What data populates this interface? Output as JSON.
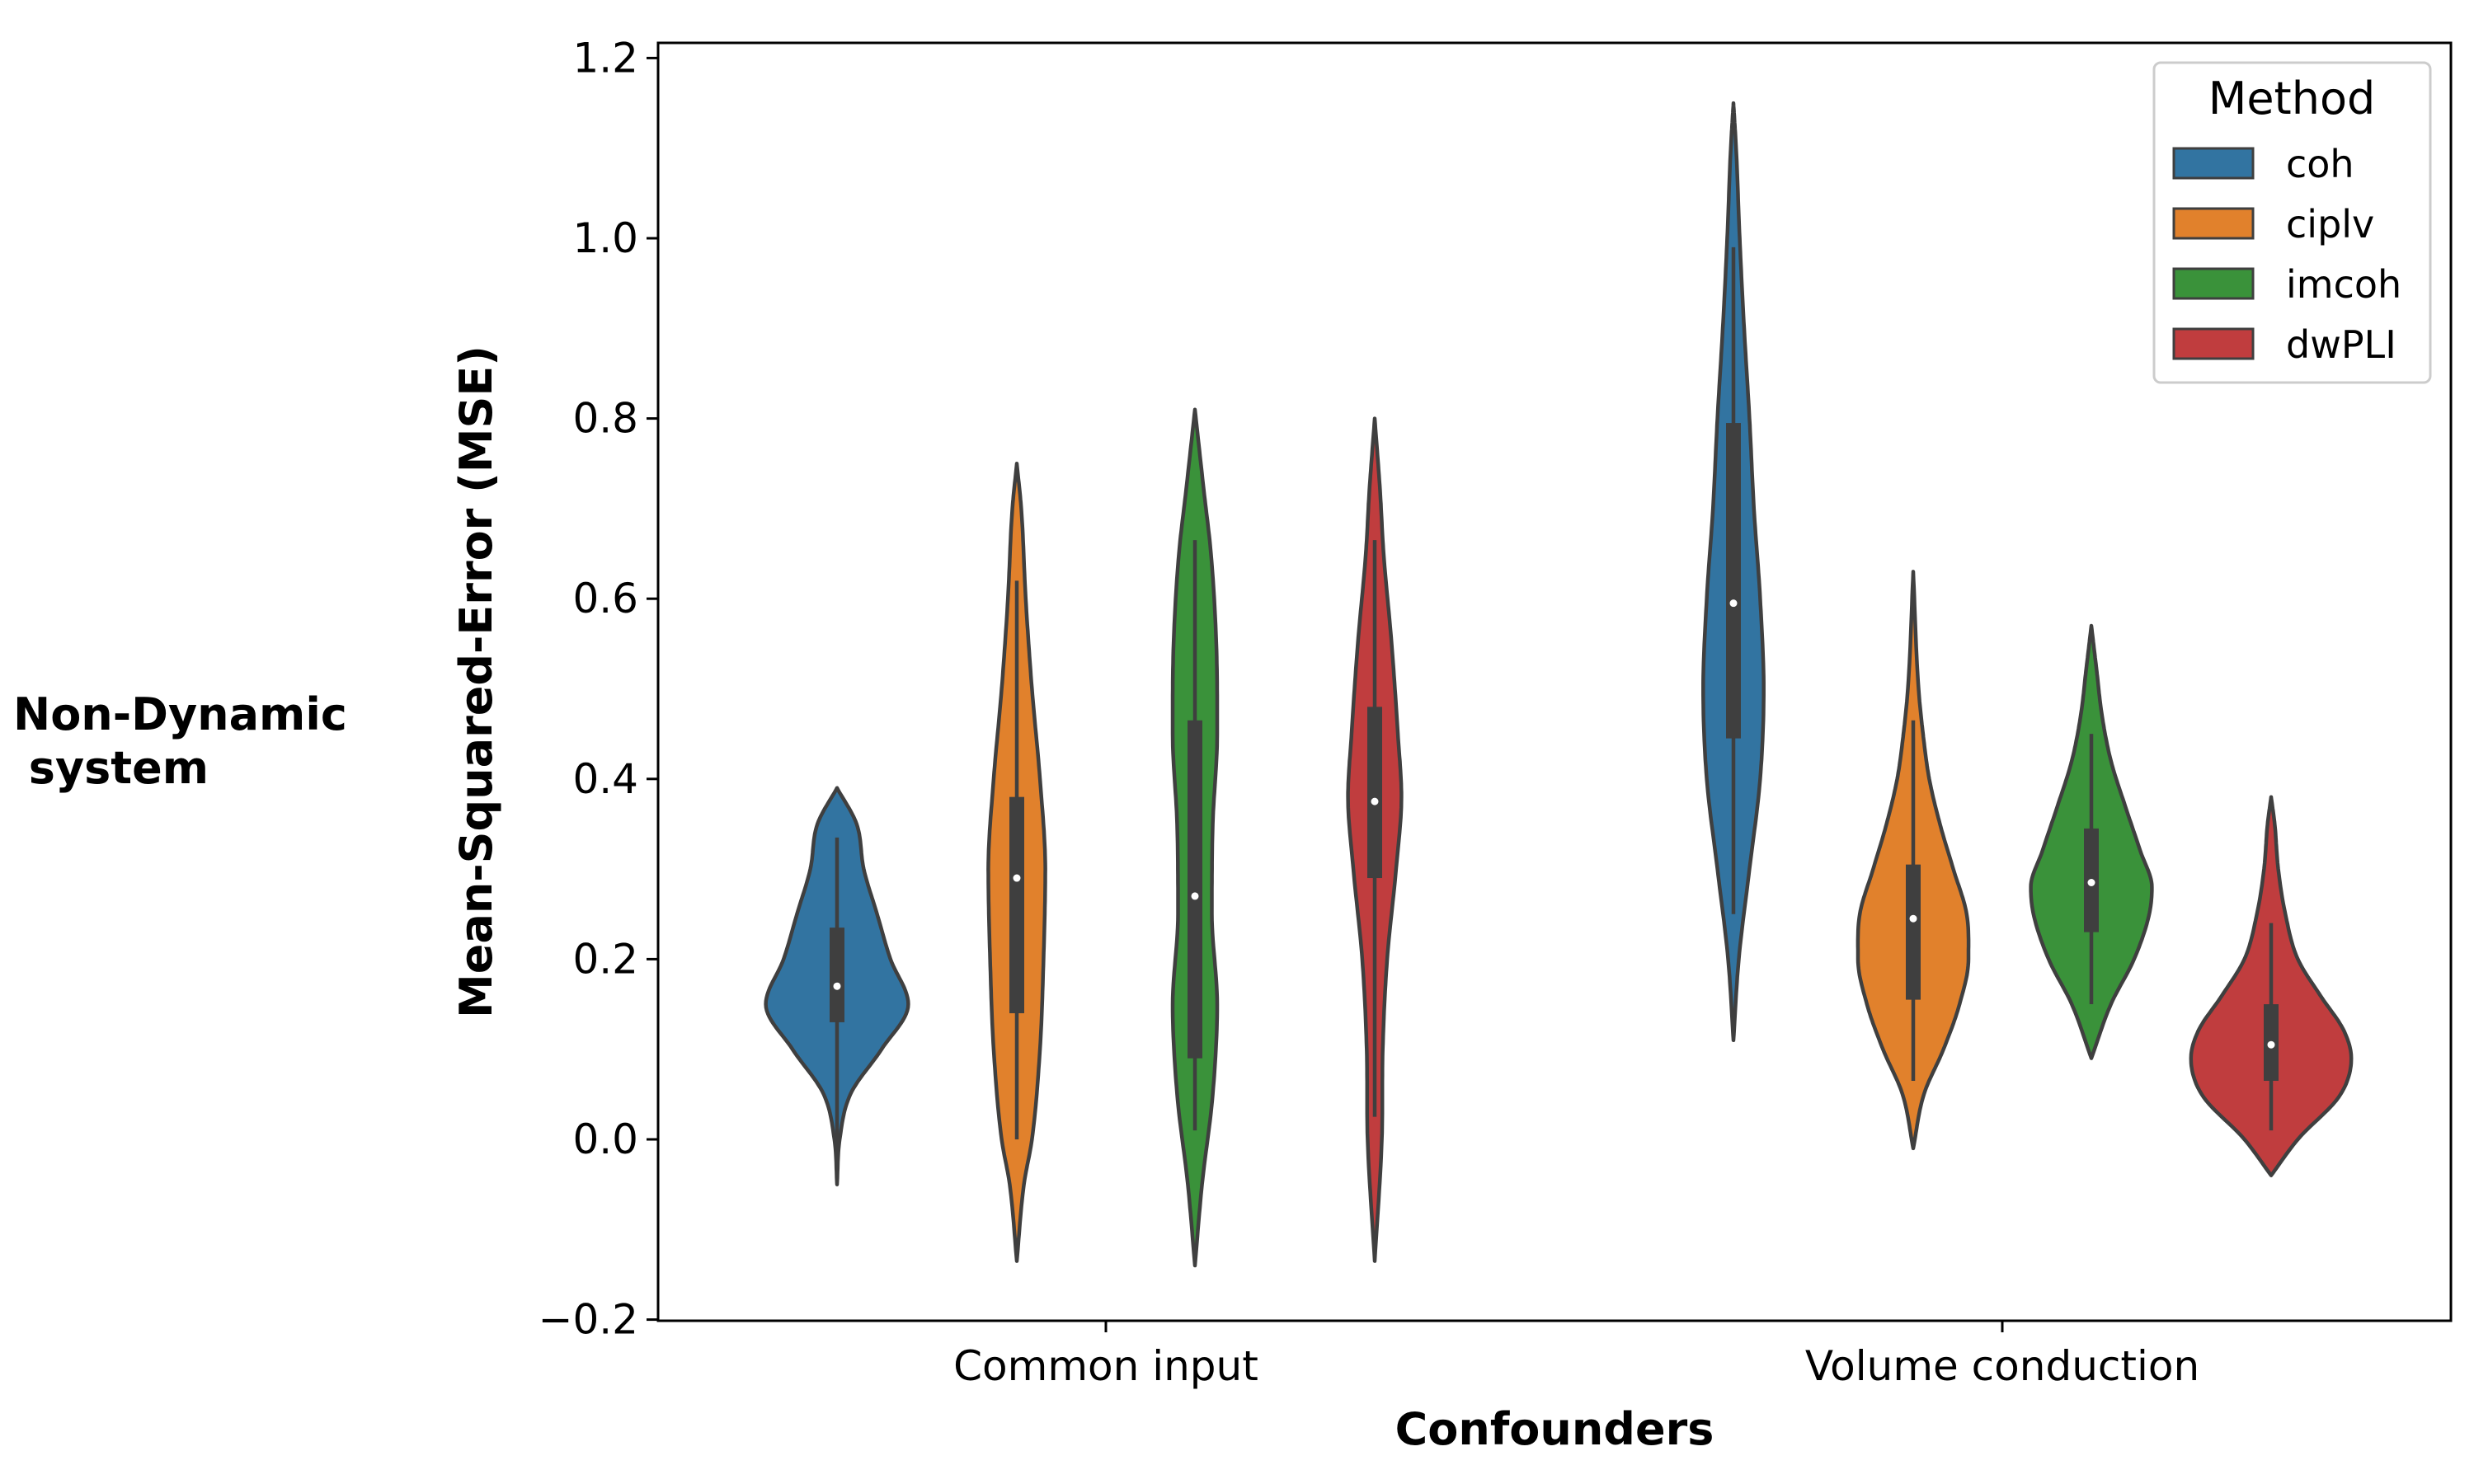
{
  "side_label": {
    "line1": "Non-Dynamic",
    "line2": " system"
  },
  "chart_data": {
    "type": "violin",
    "xlabel": "Confounders",
    "ylabel": "Mean-Squared-Error (MSE)",
    "ylim": [
      -0.2,
      1.22
    ],
    "yticks": [
      -0.2,
      0.0,
      0.2,
      0.4,
      0.6,
      0.8,
      1.0,
      1.2
    ],
    "ytick_labels": [
      "−0.2",
      "0.0",
      "0.2",
      "0.4",
      "0.6",
      "0.8",
      "1.0",
      "1.2"
    ],
    "categories": [
      "Common input",
      "Volume conduction"
    ],
    "grid": false,
    "legend": {
      "title": "Method",
      "placement": "top-right"
    },
    "series": [
      {
        "name": "coh",
        "color": "#3274a1",
        "groups": [
          {
            "min": -0.05,
            "max": 0.39,
            "q1": 0.13,
            "median": 0.17,
            "q3": 0.235,
            "whisker_low": -0.01,
            "whisker_high": 0.335,
            "profile": [
              [
                -0.05,
                0.0
              ],
              [
                0.0,
                0.03
              ],
              [
                0.05,
                0.15
              ],
              [
                0.1,
                0.5
              ],
              [
                0.15,
                0.8
              ],
              [
                0.2,
                0.6
              ],
              [
                0.25,
                0.45
              ],
              [
                0.3,
                0.3
              ],
              [
                0.35,
                0.22
              ],
              [
                0.39,
                0.0
              ]
            ]
          },
          {
            "min": 0.11,
            "max": 1.15,
            "q1": 0.445,
            "median": 0.595,
            "q3": 0.795,
            "whisker_low": 0.25,
            "whisker_high": 0.99,
            "profile": [
              [
                0.11,
                0.0
              ],
              [
                0.2,
                0.06
              ],
              [
                0.3,
                0.18
              ],
              [
                0.4,
                0.3
              ],
              [
                0.5,
                0.34
              ],
              [
                0.6,
                0.3
              ],
              [
                0.7,
                0.23
              ],
              [
                0.8,
                0.18
              ],
              [
                0.9,
                0.12
              ],
              [
                1.0,
                0.07
              ],
              [
                1.1,
                0.03
              ],
              [
                1.15,
                0.0
              ]
            ]
          }
        ]
      },
      {
        "name": "ciplv",
        "color": "#e1812c",
        "groups": [
          {
            "min": -0.135,
            "max": 0.75,
            "q1": 0.14,
            "median": 0.29,
            "q3": 0.38,
            "whisker_low": 0.0,
            "whisker_high": 0.62,
            "profile": [
              [
                -0.135,
                0.0
              ],
              [
                -0.05,
                0.08
              ],
              [
                0.0,
                0.17
              ],
              [
                0.1,
                0.26
              ],
              [
                0.2,
                0.3
              ],
              [
                0.3,
                0.32
              ],
              [
                0.4,
                0.26
              ],
              [
                0.5,
                0.17
              ],
              [
                0.6,
                0.1
              ],
              [
                0.7,
                0.05
              ],
              [
                0.75,
                0.0
              ]
            ]
          },
          {
            "min": -0.01,
            "max": 0.63,
            "q1": 0.155,
            "median": 0.245,
            "q3": 0.305,
            "whisker_low": 0.065,
            "whisker_high": 0.465,
            "profile": [
              [
                -0.01,
                0.0
              ],
              [
                0.05,
                0.12
              ],
              [
                0.1,
                0.34
              ],
              [
                0.15,
                0.52
              ],
              [
                0.2,
                0.62
              ],
              [
                0.25,
                0.6
              ],
              [
                0.3,
                0.45
              ],
              [
                0.35,
                0.3
              ],
              [
                0.4,
                0.18
              ],
              [
                0.45,
                0.11
              ],
              [
                0.5,
                0.06
              ],
              [
                0.63,
                0.0
              ]
            ]
          }
        ]
      },
      {
        "name": "imcoh",
        "color": "#3a923a",
        "groups": [
          {
            "min": -0.14,
            "max": 0.81,
            "q1": 0.09,
            "median": 0.27,
            "q3": 0.465,
            "whisker_low": 0.01,
            "whisker_high": 0.665,
            "profile": [
              [
                -0.14,
                0.0
              ],
              [
                -0.05,
                0.08
              ],
              [
                0.05,
                0.2
              ],
              [
                0.15,
                0.25
              ],
              [
                0.25,
                0.19
              ],
              [
                0.35,
                0.2
              ],
              [
                0.45,
                0.25
              ],
              [
                0.55,
                0.24
              ],
              [
                0.65,
                0.18
              ],
              [
                0.72,
                0.1
              ],
              [
                0.81,
                0.0
              ]
            ]
          },
          {
            "min": 0.09,
            "max": 0.57,
            "q1": 0.23,
            "median": 0.285,
            "q3": 0.345,
            "whisker_low": 0.15,
            "whisker_high": 0.45,
            "profile": [
              [
                0.09,
                0.0
              ],
              [
                0.15,
                0.22
              ],
              [
                0.2,
                0.48
              ],
              [
                0.25,
                0.65
              ],
              [
                0.28,
                0.68
              ],
              [
                0.32,
                0.55
              ],
              [
                0.37,
                0.38
              ],
              [
                0.42,
                0.22
              ],
              [
                0.47,
                0.12
              ],
              [
                0.52,
                0.06
              ],
              [
                0.57,
                0.0
              ]
            ]
          }
        ]
      },
      {
        "name": "dwPLI",
        "color": "#c03d3e",
        "groups": [
          {
            "min": -0.135,
            "max": 0.8,
            "q1": 0.29,
            "median": 0.375,
            "q3": 0.48,
            "whisker_low": 0.025,
            "whisker_high": 0.665,
            "profile": [
              [
                -0.135,
                0.0
              ],
              [
                0.0,
                0.08
              ],
              [
                0.1,
                0.09
              ],
              [
                0.2,
                0.14
              ],
              [
                0.3,
                0.24
              ],
              [
                0.38,
                0.3
              ],
              [
                0.45,
                0.26
              ],
              [
                0.55,
                0.19
              ],
              [
                0.65,
                0.1
              ],
              [
                0.72,
                0.06
              ],
              [
                0.8,
                0.0
              ]
            ]
          },
          {
            "min": -0.04,
            "max": 0.38,
            "q1": 0.065,
            "median": 0.105,
            "q3": 0.15,
            "whisker_low": 0.01,
            "whisker_high": 0.24,
            "profile": [
              [
                -0.04,
                0.0
              ],
              [
                0.0,
                0.3
              ],
              [
                0.05,
                0.78
              ],
              [
                0.09,
                0.9
              ],
              [
                0.12,
                0.82
              ],
              [
                0.16,
                0.55
              ],
              [
                0.2,
                0.3
              ],
              [
                0.25,
                0.16
              ],
              [
                0.3,
                0.08
              ],
              [
                0.35,
                0.04
              ],
              [
                0.38,
                0.0
              ]
            ]
          }
        ]
      }
    ]
  }
}
